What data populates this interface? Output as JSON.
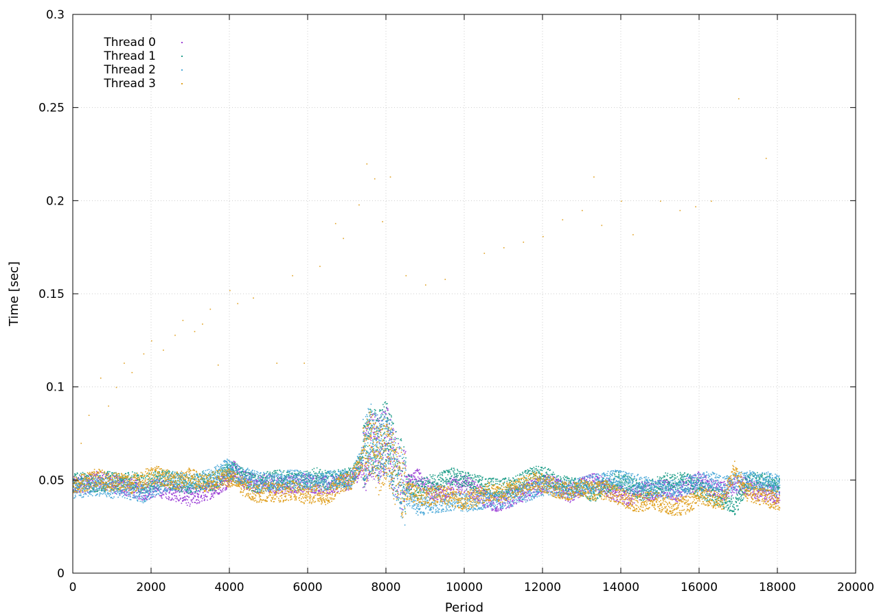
{
  "chart_data": {
    "type": "scatter",
    "title": "",
    "xlabel": "Period",
    "ylabel": "Time [sec]",
    "xlim": [
      0,
      20000
    ],
    "ylim": [
      0,
      0.3
    ],
    "x_ticks": [
      0,
      2000,
      4000,
      6000,
      8000,
      10000,
      12000,
      14000,
      16000,
      18000,
      20000
    ],
    "x_tick_labels": [
      "0",
      "2000",
      "4000",
      "6000",
      "8000",
      "10000",
      "12000",
      "14000",
      "16000",
      "18000",
      "20000"
    ],
    "y_ticks": [
      0,
      0.05,
      0.1,
      0.15,
      0.2,
      0.25,
      0.3
    ],
    "y_tick_labels": [
      "0",
      "0.05",
      "0.1",
      "0.15",
      "0.2",
      "0.25",
      "0.3"
    ],
    "grid": true,
    "legend_position": "top-left",
    "series": [
      {
        "name": "Thread 0",
        "color": "#9b3fd6",
        "points": [
          [
            0,
            0.047
          ],
          [
            300,
            0.048
          ],
          [
            600,
            0.05
          ],
          [
            900,
            0.049
          ],
          [
            1200,
            0.047
          ],
          [
            1500,
            0.046
          ],
          [
            1800,
            0.044
          ],
          [
            2100,
            0.046
          ],
          [
            2400,
            0.045
          ],
          [
            2700,
            0.043
          ],
          [
            3000,
            0.041
          ],
          [
            3300,
            0.043
          ],
          [
            3600,
            0.046
          ],
          [
            3900,
            0.05
          ],
          [
            4100,
            0.056
          ],
          [
            4400,
            0.05
          ],
          [
            4700,
            0.048
          ],
          [
            5000,
            0.049
          ],
          [
            5300,
            0.047
          ],
          [
            5600,
            0.048
          ],
          [
            5900,
            0.049
          ],
          [
            6200,
            0.048
          ],
          [
            6500,
            0.047
          ],
          [
            6800,
            0.049
          ],
          [
            7100,
            0.05
          ],
          [
            7400,
            0.058
          ],
          [
            7600,
            0.07
          ],
          [
            7800,
            0.066
          ],
          [
            8000,
            0.074
          ],
          [
            8200,
            0.06
          ],
          [
            8500,
            0.048
          ],
          [
            8800,
            0.052
          ],
          [
            9100,
            0.045
          ],
          [
            9400,
            0.043
          ],
          [
            9700,
            0.047
          ],
          [
            10000,
            0.048
          ],
          [
            10300,
            0.044
          ],
          [
            10600,
            0.039
          ],
          [
            10900,
            0.038
          ],
          [
            11200,
            0.041
          ],
          [
            11500,
            0.043
          ],
          [
            11800,
            0.046
          ],
          [
            12100,
            0.049
          ],
          [
            12400,
            0.046
          ],
          [
            12700,
            0.043
          ],
          [
            13000,
            0.047
          ],
          [
            13300,
            0.049
          ],
          [
            13600,
            0.047
          ],
          [
            13900,
            0.043
          ],
          [
            14200,
            0.041
          ],
          [
            14500,
            0.045
          ],
          [
            14800,
            0.044
          ],
          [
            15100,
            0.046
          ],
          [
            15400,
            0.043
          ],
          [
            15700,
            0.047
          ],
          [
            16000,
            0.05
          ],
          [
            16300,
            0.046
          ],
          [
            16600,
            0.044
          ],
          [
            16900,
            0.048
          ],
          [
            17200,
            0.047
          ],
          [
            17500,
            0.044
          ],
          [
            17800,
            0.043
          ],
          [
            18050,
            0.042
          ]
        ]
      },
      {
        "name": "Thread 1",
        "color": "#1f9e89",
        "points": [
          [
            0,
            0.049
          ],
          [
            300,
            0.05
          ],
          [
            600,
            0.048
          ],
          [
            900,
            0.05
          ],
          [
            1200,
            0.049
          ],
          [
            1500,
            0.05
          ],
          [
            1800,
            0.048
          ],
          [
            2100,
            0.05
          ],
          [
            2400,
            0.051
          ],
          [
            2700,
            0.049
          ],
          [
            3000,
            0.048
          ],
          [
            3300,
            0.05
          ],
          [
            3600,
            0.049
          ],
          [
            3900,
            0.054
          ],
          [
            4100,
            0.055
          ],
          [
            4400,
            0.051
          ],
          [
            4700,
            0.048
          ],
          [
            5000,
            0.05
          ],
          [
            5300,
            0.051
          ],
          [
            5600,
            0.049
          ],
          [
            5900,
            0.05
          ],
          [
            6200,
            0.052
          ],
          [
            6500,
            0.05
          ],
          [
            6800,
            0.051
          ],
          [
            7100,
            0.052
          ],
          [
            7400,
            0.062
          ],
          [
            7600,
            0.072
          ],
          [
            7800,
            0.069
          ],
          [
            8000,
            0.076
          ],
          [
            8200,
            0.062
          ],
          [
            8500,
            0.049
          ],
          [
            8800,
            0.045
          ],
          [
            9100,
            0.048
          ],
          [
            9400,
            0.05
          ],
          [
            9700,
            0.052
          ],
          [
            10000,
            0.05
          ],
          [
            10300,
            0.048
          ],
          [
            10600,
            0.047
          ],
          [
            10900,
            0.046
          ],
          [
            11200,
            0.047
          ],
          [
            11500,
            0.05
          ],
          [
            11800,
            0.053
          ],
          [
            12100,
            0.052
          ],
          [
            12400,
            0.048
          ],
          [
            12700,
            0.047
          ],
          [
            13000,
            0.046
          ],
          [
            13300,
            0.043
          ],
          [
            13600,
            0.048
          ],
          [
            13900,
            0.05
          ],
          [
            14200,
            0.048
          ],
          [
            14500,
            0.044
          ],
          [
            14800,
            0.046
          ],
          [
            15100,
            0.049
          ],
          [
            15400,
            0.05
          ],
          [
            15700,
            0.049
          ],
          [
            16000,
            0.046
          ],
          [
            16300,
            0.042
          ],
          [
            16600,
            0.04
          ],
          [
            16900,
            0.036
          ],
          [
            17200,
            0.048
          ],
          [
            17500,
            0.05
          ],
          [
            17800,
            0.048
          ],
          [
            18050,
            0.046
          ]
        ]
      },
      {
        "name": "Thread 2",
        "color": "#4aa8d8",
        "points": [
          [
            0,
            0.045
          ],
          [
            300,
            0.046
          ],
          [
            600,
            0.047
          ],
          [
            900,
            0.045
          ],
          [
            1200,
            0.046
          ],
          [
            1500,
            0.044
          ],
          [
            1800,
            0.043
          ],
          [
            2100,
            0.047
          ],
          [
            2400,
            0.049
          ],
          [
            2700,
            0.05
          ],
          [
            3000,
            0.048
          ],
          [
            3300,
            0.05
          ],
          [
            3600,
            0.052
          ],
          [
            3900,
            0.057
          ],
          [
            4100,
            0.054
          ],
          [
            4400,
            0.052
          ],
          [
            4700,
            0.05
          ],
          [
            5000,
            0.049
          ],
          [
            5300,
            0.05
          ],
          [
            5600,
            0.051
          ],
          [
            5900,
            0.05
          ],
          [
            6200,
            0.049
          ],
          [
            6500,
            0.05
          ],
          [
            6800,
            0.051
          ],
          [
            7100,
            0.05
          ],
          [
            7400,
            0.065
          ],
          [
            7600,
            0.074
          ],
          [
            7800,
            0.067
          ],
          [
            8000,
            0.072
          ],
          [
            8200,
            0.058
          ],
          [
            8500,
            0.042
          ],
          [
            8800,
            0.036
          ],
          [
            9100,
            0.037
          ],
          [
            9400,
            0.038
          ],
          [
            9700,
            0.039
          ],
          [
            10000,
            0.038
          ],
          [
            10300,
            0.039
          ],
          [
            10600,
            0.04
          ],
          [
            10900,
            0.039
          ],
          [
            11200,
            0.041
          ],
          [
            11500,
            0.043
          ],
          [
            11800,
            0.045
          ],
          [
            12100,
            0.047
          ],
          [
            12400,
            0.046
          ],
          [
            12700,
            0.045
          ],
          [
            13000,
            0.047
          ],
          [
            13300,
            0.049
          ],
          [
            13600,
            0.05
          ],
          [
            13900,
            0.051
          ],
          [
            14200,
            0.049
          ],
          [
            14500,
            0.048
          ],
          [
            14800,
            0.046
          ],
          [
            15100,
            0.045
          ],
          [
            15400,
            0.046
          ],
          [
            15700,
            0.048
          ],
          [
            16000,
            0.049
          ],
          [
            16300,
            0.05
          ],
          [
            16600,
            0.047
          ],
          [
            16900,
            0.049
          ],
          [
            17200,
            0.051
          ],
          [
            17500,
            0.049
          ],
          [
            17800,
            0.05
          ],
          [
            18050,
            0.048
          ]
        ]
      },
      {
        "name": "Thread 3",
        "color": "#e0a020",
        "points": [
          [
            0,
            0.048
          ],
          [
            300,
            0.049
          ],
          [
            600,
            0.052
          ],
          [
            900,
            0.049
          ],
          [
            1200,
            0.05
          ],
          [
            1500,
            0.048
          ],
          [
            1800,
            0.051
          ],
          [
            2100,
            0.053
          ],
          [
            2400,
            0.051
          ],
          [
            2700,
            0.05
          ],
          [
            3000,
            0.052
          ],
          [
            3300,
            0.048
          ],
          [
            3600,
            0.05
          ],
          [
            3900,
            0.052
          ],
          [
            4100,
            0.05
          ],
          [
            4400,
            0.046
          ],
          [
            4700,
            0.043
          ],
          [
            5000,
            0.044
          ],
          [
            5300,
            0.043
          ],
          [
            5600,
            0.045
          ],
          [
            5900,
            0.042
          ],
          [
            6200,
            0.043
          ],
          [
            6500,
            0.041
          ],
          [
            6800,
            0.048
          ],
          [
            7100,
            0.05
          ],
          [
            7400,
            0.063
          ],
          [
            7600,
            0.071
          ],
          [
            7800,
            0.06
          ],
          [
            8000,
            0.068
          ],
          [
            8200,
            0.056
          ],
          [
            8500,
            0.045
          ],
          [
            8800,
            0.042
          ],
          [
            9100,
            0.041
          ],
          [
            9400,
            0.043
          ],
          [
            9700,
            0.041
          ],
          [
            10000,
            0.039
          ],
          [
            10300,
            0.041
          ],
          [
            10600,
            0.044
          ],
          [
            10900,
            0.043
          ],
          [
            11200,
            0.045
          ],
          [
            11500,
            0.047
          ],
          [
            11800,
            0.05
          ],
          [
            12100,
            0.048
          ],
          [
            12400,
            0.045
          ],
          [
            12700,
            0.044
          ],
          [
            13000,
            0.046
          ],
          [
            13300,
            0.044
          ],
          [
            13600,
            0.045
          ],
          [
            13900,
            0.042
          ],
          [
            14200,
            0.039
          ],
          [
            14500,
            0.038
          ],
          [
            14800,
            0.04
          ],
          [
            15100,
            0.037
          ],
          [
            15400,
            0.036
          ],
          [
            15700,
            0.037
          ],
          [
            16000,
            0.042
          ],
          [
            16300,
            0.04
          ],
          [
            16600,
            0.039
          ],
          [
            16900,
            0.056
          ],
          [
            17200,
            0.044
          ],
          [
            17500,
            0.042
          ],
          [
            17800,
            0.04
          ],
          [
            18050,
            0.039
          ]
        ]
      }
    ],
    "outliers": [
      [
        200,
        0.07
      ],
      [
        400,
        0.085
      ],
      [
        700,
        0.105
      ],
      [
        900,
        0.09
      ],
      [
        1100,
        0.1
      ],
      [
        1300,
        0.113
      ],
      [
        1500,
        0.108
      ],
      [
        1800,
        0.118
      ],
      [
        2000,
        0.125
      ],
      [
        2300,
        0.12
      ],
      [
        2600,
        0.128
      ],
      [
        2800,
        0.136
      ],
      [
        3100,
        0.13
      ],
      [
        3300,
        0.134
      ],
      [
        3500,
        0.142
      ],
      [
        3700,
        0.112
      ],
      [
        4000,
        0.152
      ],
      [
        4200,
        0.145
      ],
      [
        4600,
        0.148
      ],
      [
        5200,
        0.113
      ],
      [
        5600,
        0.16
      ],
      [
        5900,
        0.113
      ],
      [
        6300,
        0.165
      ],
      [
        6700,
        0.188
      ],
      [
        6900,
        0.18
      ],
      [
        7300,
        0.198
      ],
      [
        7500,
        0.22
      ],
      [
        7700,
        0.212
      ],
      [
        7900,
        0.189
      ],
      [
        8100,
        0.213
      ],
      [
        8500,
        0.16
      ],
      [
        9000,
        0.155
      ],
      [
        9500,
        0.158
      ],
      [
        10500,
        0.172
      ],
      [
        11000,
        0.175
      ],
      [
        11500,
        0.178
      ],
      [
        12000,
        0.181
      ],
      [
        12500,
        0.19
      ],
      [
        13000,
        0.195
      ],
      [
        13300,
        0.213
      ],
      [
        13500,
        0.187
      ],
      [
        14000,
        0.2
      ],
      [
        14300,
        0.182
      ],
      [
        15000,
        0.2
      ],
      [
        15500,
        0.195
      ],
      [
        15900,
        0.197
      ],
      [
        16300,
        0.2
      ],
      [
        17000,
        0.255
      ],
      [
        17700,
        0.223
      ]
    ]
  }
}
